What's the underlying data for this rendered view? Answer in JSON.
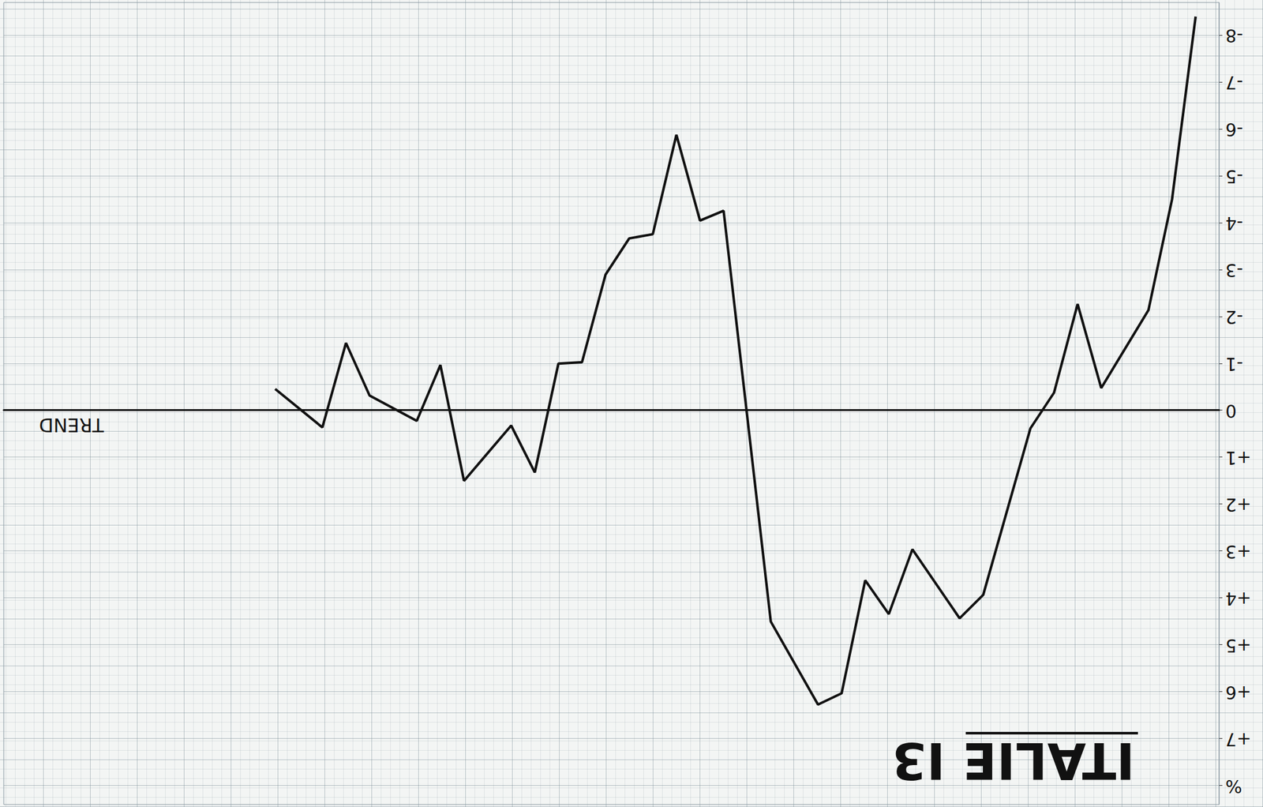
{
  "chart_data": {
    "type": "line",
    "title": "ITALIE I3",
    "x_label": "TREND",
    "x": [
      0,
      1,
      2,
      4,
      5,
      6,
      7,
      9,
      10,
      12,
      13,
      14,
      15,
      16,
      18,
      20,
      21,
      22,
      23,
      24,
      25,
      26,
      27,
      28,
      29,
      31,
      32,
      33,
      35,
      36,
      37,
      39
    ],
    "values": [
      -8.4,
      -4.5,
      -2.14,
      -0.48,
      -2.27,
      -0.38,
      0.38,
      3.93,
      4.43,
      2.96,
      4.34,
      3.62,
      6.03,
      6.27,
      4.5,
      -4.26,
      -4.05,
      -5.88,
      -3.76,
      -3.67,
      -2.9,
      -1.03,
      -1.0,
      1.32,
      0.32,
      1.5,
      -0.97,
      0.22,
      -0.32,
      -1.44,
      0.36,
      -0.46
    ],
    "color": "#111111",
    "marker": "none",
    "line_style": "solid",
    "xlim": [
      -1,
      50.5
    ],
    "xticks": [],
    "ylim": [
      -8.7,
      8.4
    ],
    "yticks": [
      -8,
      -7,
      -6,
      -5,
      -4,
      -3,
      -2,
      -1,
      0,
      {
        "value": 1,
        "label": "+1"
      },
      {
        "value": 2,
        "label": "+2"
      },
      {
        "value": 3,
        "label": "+3"
      },
      {
        "value": 4,
        "label": "+4"
      },
      {
        "value": 5,
        "label": "+5"
      },
      {
        "value": 6,
        "label": "+6"
      },
      {
        "value": 7,
        "label": "+7"
      },
      {
        "value": 8,
        "label": "%"
      }
    ],
    "grid": true,
    "tick_labels": "y"
  }
}
